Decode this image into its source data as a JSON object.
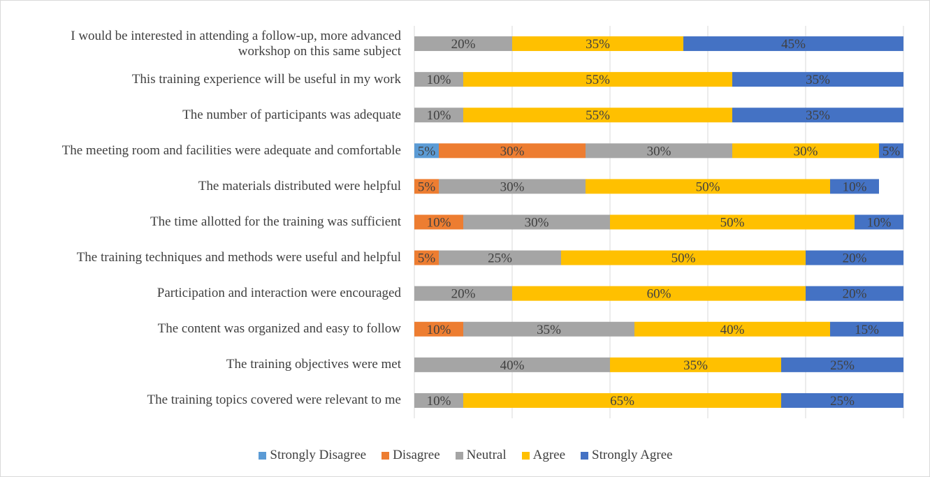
{
  "chart_data": {
    "type": "stacked_bar_horizontal",
    "categories": [
      "I would be interested in attending a follow-up, more advanced workshop on this same subject",
      "This training experience will be useful in my work",
      "The number of participants was adequate",
      "The meeting room and facilities were adequate and comfortable",
      "The materials distributed were helpful",
      "The time allotted for the training was sufficient",
      "The training techniques and methods were useful and helpful",
      "Participation and interaction were encouraged",
      "The content was organized and easy to follow",
      "The training objectives were met",
      "The training topics covered were relevant to me"
    ],
    "series": [
      {
        "name": "Strongly Disagree",
        "color": "#5b9bd5",
        "values": [
          null,
          null,
          null,
          5,
          null,
          null,
          null,
          null,
          null,
          null,
          null
        ],
        "value_labels": [
          null,
          null,
          null,
          "5%",
          null,
          null,
          null,
          null,
          null,
          null,
          null
        ]
      },
      {
        "name": "Disagree",
        "color": "#ed7d31",
        "values": [
          null,
          null,
          null,
          30,
          5,
          10,
          5,
          null,
          10,
          null,
          null
        ],
        "value_labels": [
          null,
          null,
          null,
          "30%",
          "5%",
          "10%",
          "5%",
          null,
          "10%",
          null,
          null
        ]
      },
      {
        "name": "Neutral",
        "color": "#a5a5a5",
        "values": [
          20,
          10,
          10,
          30,
          30,
          30,
          25,
          20,
          35,
          40,
          10
        ],
        "value_labels": [
          "20%",
          "10%",
          "10%",
          "30%",
          "30%",
          "30%",
          "25%",
          "20%",
          "35%",
          "40%",
          "10%"
        ]
      },
      {
        "name": "Agree",
        "color": "#ffc000",
        "values": [
          35,
          55,
          55,
          30,
          50,
          50,
          50,
          60,
          40,
          35,
          65
        ],
        "value_labels": [
          "35%",
          "55%",
          "55%",
          "30%",
          "50%",
          "50%",
          "50%",
          "60%",
          "40%",
          "35%",
          "65%"
        ]
      },
      {
        "name": "Strongly Agree",
        "color": "#4472c4",
        "values": [
          45,
          35,
          35,
          5,
          10,
          10,
          20,
          20,
          15,
          25,
          25
        ],
        "value_labels": [
          "45%",
          "35%",
          "35%",
          "5%",
          "10%",
          "10%",
          "20%",
          "20%",
          "15%",
          "25%",
          "25%"
        ]
      }
    ],
    "xlim": [
      0,
      100
    ],
    "xticks": [
      0,
      20,
      40,
      60,
      80,
      100
    ],
    "grid": true,
    "legend": "bottom"
  }
}
